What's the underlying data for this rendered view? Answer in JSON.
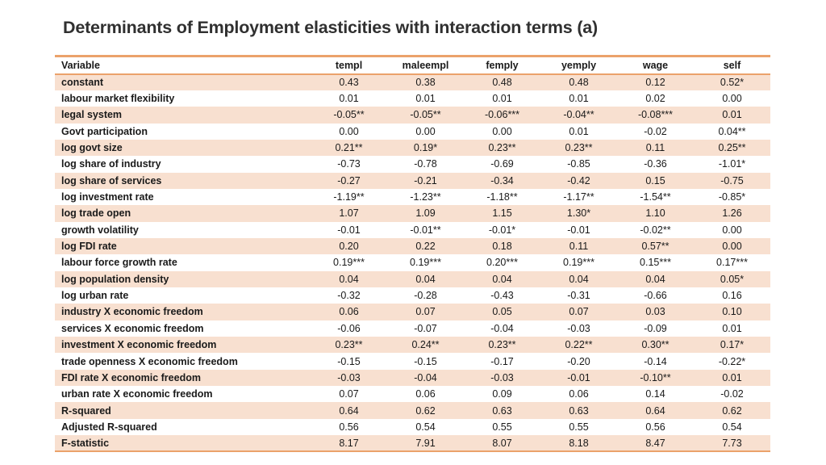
{
  "title": "Determinants of Employment elasticities with interaction terms (a)",
  "colors": {
    "row_stripe": "#F8E0D0",
    "table_border": "#EBA26B",
    "title_text": "#303030"
  },
  "table": {
    "columns": [
      "Variable",
      "templ",
      "maleempl",
      "femply",
      "yemply",
      "wage",
      "self"
    ],
    "rows": [
      {
        "label": "constant",
        "values": [
          "0.43",
          "0.38",
          "0.48",
          "0.48",
          "0.12",
          "0.52*"
        ]
      },
      {
        "label": "labour market flexibility",
        "values": [
          "0.01",
          "0.01",
          "0.01",
          "0.01",
          "0.02",
          "0.00"
        ]
      },
      {
        "label": "legal system",
        "values": [
          "-0.05**",
          "-0.05**",
          "-0.06***",
          "-0.04**",
          "-0.08***",
          "0.01"
        ]
      },
      {
        "label": "Govt participation",
        "values": [
          "0.00",
          "0.00",
          "0.00",
          "0.01",
          "-0.02",
          "0.04**"
        ]
      },
      {
        "label": "log govt size",
        "values": [
          "0.21**",
          "0.19*",
          "0.23**",
          "0.23**",
          "0.11",
          "0.25**"
        ]
      },
      {
        "label": "log share of industry",
        "values": [
          "-0.73",
          "-0.78",
          "-0.69",
          "-0.85",
          "-0.36",
          "-1.01*"
        ]
      },
      {
        "label": "log share of services",
        "values": [
          "-0.27",
          "-0.21",
          "-0.34",
          "-0.42",
          "0.15",
          "-0.75"
        ]
      },
      {
        "label": "log investment rate",
        "values": [
          "-1.19**",
          "-1.23**",
          "-1.18**",
          "-1.17**",
          "-1.54**",
          "-0.85*"
        ]
      },
      {
        "label": "log trade open",
        "values": [
          "1.07",
          "1.09",
          "1.15",
          "1.30*",
          "1.10",
          "1.26"
        ]
      },
      {
        "label": "growth volatility",
        "values": [
          "-0.01",
          "-0.01**",
          "-0.01*",
          "-0.01",
          "-0.02**",
          "0.00"
        ]
      },
      {
        "label": "log FDI rate",
        "values": [
          "0.20",
          "0.22",
          "0.18",
          "0.11",
          "0.57**",
          "0.00"
        ]
      },
      {
        "label": "labour force growth rate",
        "values": [
          "0.19***",
          "0.19***",
          "0.20***",
          "0.19***",
          "0.15***",
          "0.17***"
        ]
      },
      {
        "label": "log population density",
        "values": [
          "0.04",
          "0.04",
          "0.04",
          "0.04",
          "0.04",
          "0.05*"
        ]
      },
      {
        "label": "log urban rate",
        "values": [
          "-0.32",
          "-0.28",
          "-0.43",
          "-0.31",
          "-0.66",
          "0.16"
        ]
      },
      {
        "label": "industry X economic freedom",
        "values": [
          "0.06",
          "0.07",
          "0.05",
          "0.07",
          "0.03",
          "0.10"
        ]
      },
      {
        "label": "services X economic freedom",
        "values": [
          "-0.06",
          "-0.07",
          "-0.04",
          "-0.03",
          "-0.09",
          "0.01"
        ]
      },
      {
        "label": "investment X economic freedom",
        "values": [
          "0.23**",
          "0.24**",
          "0.23**",
          "0.22**",
          "0.30**",
          "0.17*"
        ]
      },
      {
        "label": "trade openness X economic freedom",
        "values": [
          "-0.15",
          "-0.15",
          "-0.17",
          "-0.20",
          "-0.14",
          "-0.22*"
        ]
      },
      {
        "label": "FDI rate X economic freedom",
        "values": [
          "-0.03",
          "-0.04",
          "-0.03",
          "-0.01",
          "-0.10**",
          "0.01"
        ]
      },
      {
        "label": "urban rate X economic freedom",
        "values": [
          "0.07",
          "0.06",
          "0.09",
          "0.06",
          "0.14",
          "-0.02"
        ]
      },
      {
        "label": "R-squared",
        "values": [
          "0.64",
          "0.62",
          "0.63",
          "0.63",
          "0.64",
          "0.62"
        ]
      },
      {
        "label": "Adjusted R-squared",
        "values": [
          "0.56",
          "0.54",
          "0.55",
          "0.55",
          "0.56",
          "0.54"
        ]
      },
      {
        "label": "F-statistic",
        "values": [
          "8.17",
          "7.91",
          "8.07",
          "8.18",
          "8.47",
          "7.73"
        ]
      }
    ]
  }
}
